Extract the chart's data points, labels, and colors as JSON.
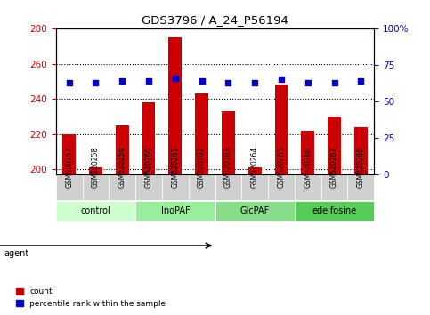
{
  "title": "GDS3796 / A_24_P56194",
  "samples": [
    "GSM520257",
    "GSM520258",
    "GSM520259",
    "GSM520260",
    "GSM520261",
    "GSM520262",
    "GSM520263",
    "GSM520264",
    "GSM520265",
    "GSM520266",
    "GSM520267",
    "GSM520268"
  ],
  "counts": [
    220,
    201,
    225,
    238,
    275,
    243,
    233,
    201,
    248,
    222,
    230,
    224
  ],
  "percentiles": [
    63,
    63,
    64,
    64,
    66,
    64,
    63,
    63,
    65,
    63,
    63,
    64
  ],
  "groups": [
    {
      "label": "control",
      "start": 0,
      "end": 3,
      "color": "#ccffcc"
    },
    {
      "label": "InoPAF",
      "start": 3,
      "end": 6,
      "color": "#99ee99"
    },
    {
      "label": "GlcPAF",
      "start": 6,
      "end": 9,
      "color": "#88dd88"
    },
    {
      "label": "edelfosine",
      "start": 9,
      "end": 12,
      "color": "#55cc55"
    }
  ],
  "ylim_left": [
    197,
    280
  ],
  "ylim_right": [
    0,
    100
  ],
  "yticks_left": [
    200,
    220,
    240,
    260,
    280
  ],
  "yticks_right": [
    0,
    25,
    50,
    75,
    100
  ],
  "bar_color": "#cc0000",
  "dot_color": "#0000cc",
  "bar_bottom": 197,
  "bar_width": 0.5,
  "left_tick_color": "#cc0000",
  "right_tick_color": "#0000cc",
  "agent_label": "agent",
  "legend_count": "count",
  "legend_pct": "percentile rank within the sample"
}
